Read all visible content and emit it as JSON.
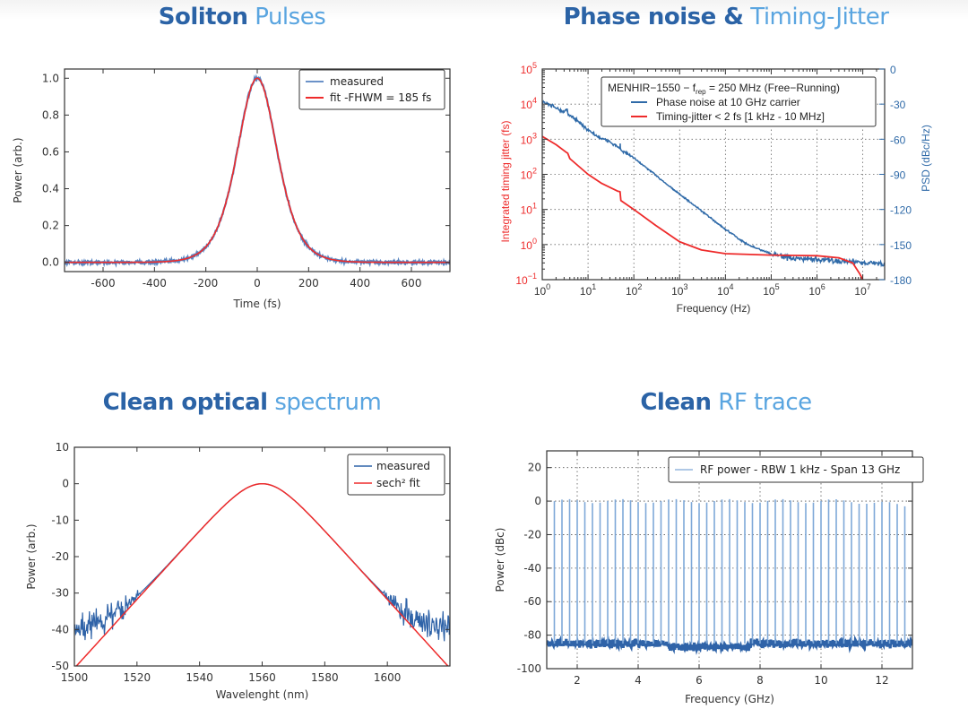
{
  "titles": [
    {
      "strong": "Soliton",
      "light": "Pulses"
    },
    {
      "strong": "Phase noise &",
      "light": "Timing-Jitter"
    },
    {
      "strong": "Clean optical",
      "light": "spectrum"
    },
    {
      "strong": "Clean",
      "light": "RF trace"
    }
  ],
  "chart_data": [
    {
      "id": "soliton",
      "type": "line",
      "xlabel": "Time (fs)",
      "ylabel": "Power (arb.)",
      "xlim": [
        -750,
        750
      ],
      "ylim": [
        -0.05,
        1.05
      ],
      "xticks": [
        -600,
        -400,
        -200,
        0,
        200,
        400,
        600
      ],
      "xtick_labels": [
        "-600",
        "-400",
        "-200",
        "0",
        "200",
        "400",
        "600"
      ],
      "yticks": [
        0.0,
        0.2,
        0.4,
        0.6,
        0.8,
        1.0
      ],
      "ytick_labels": [
        "0.0",
        "0.2",
        "0.4",
        "0.6",
        "0.8",
        "1.0"
      ],
      "grid": false,
      "legend_position": "top-right",
      "series": [
        {
          "name": "measured",
          "color": "#3a6fb5",
          "model": "sech2",
          "center": 0,
          "fwhm": 185,
          "peak": 1.0,
          "noise": 0.006
        },
        {
          "name": "fit -FHWM = 185 fs",
          "color": "#ee2b2b",
          "model": "sech2",
          "center": 0,
          "fwhm": 185,
          "peak": 1.0
        }
      ]
    },
    {
      "id": "phase-noise",
      "type": "line",
      "xscale": "log",
      "xlabel": "Frequency (Hz)",
      "ylabel_left": "Integrated timing jitter (fs)",
      "ylabel_right": "PSD (dBc/Hz)",
      "xlim": [
        1,
        30000000
      ],
      "ylim_left": [
        0.1,
        100000
      ],
      "ylim_right": [
        -180,
        0
      ],
      "xtick_exponents": [
        0,
        1,
        2,
        3,
        4,
        5,
        6,
        7
      ],
      "ytick_left_exponents": [
        -1,
        0,
        1,
        2,
        3,
        4,
        5
      ],
      "ytick_right": [
        0,
        -30,
        -60,
        -90,
        -120,
        -150,
        -180
      ],
      "ytick_right_labels": [
        "0",
        "-30",
        "-60",
        "-90",
        "-120",
        "-150",
        "-180"
      ],
      "grid": true,
      "left_axis_color": "#ee2b2b",
      "right_axis_color": "#2f6aa8",
      "legend_position": "top-right",
      "legend_title": {
        "main": "MENHIR−1550 − f",
        "sub": "rep",
        "rest": " = 250 MHz (Free−Running)"
      },
      "series": [
        {
          "name": "Phase noise at 10 GHz carrier",
          "axis": "right",
          "color": "#2f6aa8",
          "points": [
            [
              1,
              -28
            ],
            [
              2,
              -33
            ],
            [
              3,
              -37
            ],
            [
              3.5,
              -34
            ],
            [
              3.7,
              -39
            ],
            [
              5,
              -42
            ],
            [
              10,
              -52
            ],
            [
              20,
              -60
            ],
            [
              30,
              -62
            ],
            [
              50,
              -68
            ],
            [
              50.5,
              -62
            ],
            [
              51,
              -69
            ],
            [
              100,
              -76
            ],
            [
              1000,
              -107
            ],
            [
              10000,
              -137
            ],
            [
              30000,
              -150
            ],
            [
              100000,
              -158
            ],
            [
              300000,
              -162
            ],
            [
              1000000,
              -163
            ],
            [
              10000000,
              -165
            ],
            [
              30000000,
              -167
            ]
          ]
        },
        {
          "name": "Timing-jitter < 2 fs [1 kHz - 10 MHz]",
          "axis": "left",
          "color": "#ee2b2b",
          "points": [
            [
              1,
              1200
            ],
            [
              2,
              700
            ],
            [
              3.3,
              430
            ],
            [
              3.6,
              400
            ],
            [
              4,
              280
            ],
            [
              10,
              100
            ],
            [
              20,
              55
            ],
            [
              45,
              33
            ],
            [
              50,
              32
            ],
            [
              52,
              18
            ],
            [
              100,
              10
            ],
            [
              300,
              3.5
            ],
            [
              1000,
              1.2
            ],
            [
              3000,
              0.7
            ],
            [
              10000,
              0.55
            ],
            [
              100000,
              0.5
            ],
            [
              1000000,
              0.48
            ],
            [
              3000000,
              0.42
            ],
            [
              6000000,
              0.3
            ],
            [
              8500000,
              0.15
            ],
            [
              10000000,
              0.1
            ]
          ]
        }
      ]
    },
    {
      "id": "optical-spectrum",
      "type": "line",
      "xlabel": "Wavelenght (nm)",
      "ylabel": "Power (arb.)",
      "xlim": [
        1500,
        1620
      ],
      "ylim": [
        -50,
        10
      ],
      "xticks": [
        1500,
        1520,
        1540,
        1560,
        1580,
        1600
      ],
      "xtick_labels": [
        "1500",
        "1520",
        "1540",
        "1560",
        "1580",
        "1600"
      ],
      "yticks": [
        10,
        0,
        -10,
        -20,
        -30,
        -40,
        -50
      ],
      "ytick_labels": [
        "10",
        "0",
        "-10",
        "-20",
        "-30",
        "-40",
        "-50"
      ],
      "grid": false,
      "legend_position": "top-right",
      "series": [
        {
          "name": "measured",
          "color": "#2f63a8",
          "model": "sech2_db_with_floor",
          "center": 1560,
          "width_nm": 9.2,
          "floor_db": -40,
          "noise_db": 2.5
        },
        {
          "name": "sech² fit",
          "color": "#ee2b2b",
          "model": "sech2_db",
          "center": 1560,
          "width_nm": 9.2
        }
      ]
    },
    {
      "id": "rf-trace",
      "type": "line",
      "xlabel": "Frequency (GHz)",
      "ylabel": "Power (dBc)",
      "xlim": [
        1,
        13
      ],
      "ylim": [
        -100,
        30
      ],
      "xticks": [
        2,
        4,
        6,
        8,
        10,
        12
      ],
      "xtick_labels": [
        "2",
        "4",
        "6",
        "8",
        "10",
        "12"
      ],
      "yticks": [
        20,
        0,
        -20,
        -40,
        -60,
        -80,
        -100
      ],
      "ytick_labels": [
        "20",
        "0",
        "-20",
        "-40",
        "-60",
        "-80",
        "-100"
      ],
      "grid": true,
      "legend_position": "top-right",
      "series": [
        {
          "name": "RF power - RBW 1 kHz - Span 13 GHz",
          "color": "#2f63a8",
          "comb_spacing_ghz": 0.25,
          "comb_start_ghz": 1.25,
          "comb_end_ghz": 12.75,
          "comb_peak_dbc": 0,
          "noise_floor_dbc": -85
        }
      ]
    }
  ]
}
